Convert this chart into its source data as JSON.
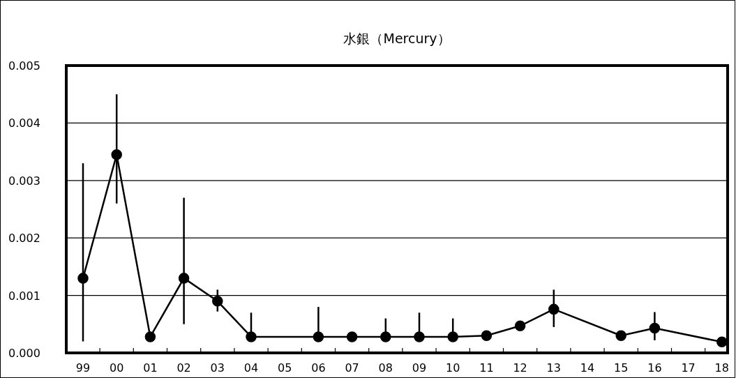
{
  "chart_data": {
    "type": "line",
    "title": "水銀（Mercury）",
    "categories": [
      "99",
      "00",
      "01",
      "02",
      "03",
      "04",
      "05",
      "06",
      "07",
      "08",
      "09",
      "10",
      "11",
      "12",
      "13",
      "14",
      "15",
      "16",
      "17",
      "18"
    ],
    "series": [
      {
        "color": "#000000",
        "values": [
          0.0013,
          0.00345,
          0.00028,
          0.0013,
          0.0009,
          0.00028,
          null,
          0.00028,
          0.00028,
          0.00028,
          0.00028,
          0.00028,
          0.0003,
          0.00047,
          0.00076,
          null,
          0.0003,
          0.00043,
          null,
          0.00019
        ],
        "errors": [
          [
            0.0002,
            0.0033
          ],
          [
            0.0026,
            0.0045
          ],
          null,
          [
            0.0005,
            0.0027
          ],
          [
            0.00072,
            0.0011
          ],
          [
            0.00028,
            0.0007
          ],
          null,
          [
            0.00028,
            0.0008
          ],
          null,
          [
            0.00028,
            0.0006
          ],
          [
            0.00028,
            0.0007
          ],
          [
            0.00028,
            0.0006
          ],
          null,
          null,
          [
            0.00045,
            0.0011
          ],
          null,
          null,
          [
            0.00022,
            0.00071
          ],
          null,
          null
        ]
      }
    ],
    "ylim": [
      0,
      0.005
    ],
    "yticks": [
      {
        "value": 0,
        "label": "0.000"
      },
      0.001,
      0.002,
      0.003,
      0.004,
      0.005
    ],
    "grid": "y",
    "marker": "circle",
    "line_style": "solid"
  }
}
